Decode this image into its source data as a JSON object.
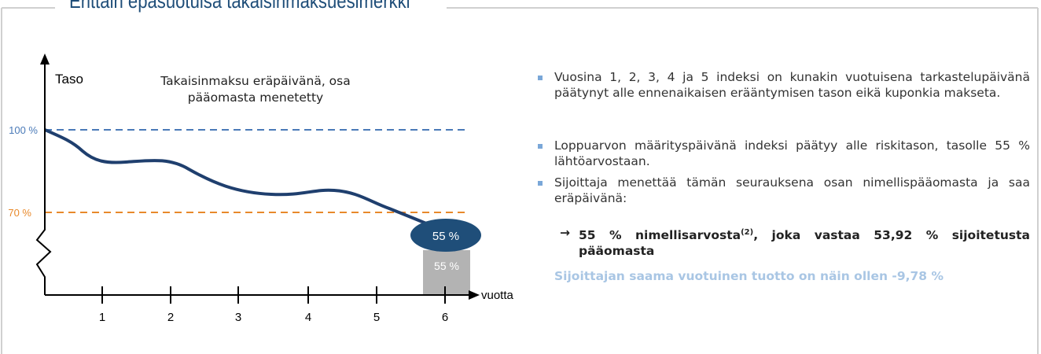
{
  "header": {
    "title": "Erittäin epäsuotuisa takaisinmaksuesimerkki"
  },
  "diagram": {
    "y_axis_label": "Taso",
    "caption": "Takaisinmaksu eräpäivänä, osa pääomasta menetetty",
    "levels": [
      "100 %",
      "70 %"
    ],
    "x_axis_label": "vuotta",
    "x_ticks": [
      "1",
      "2",
      "3",
      "4",
      "5",
      "6"
    ],
    "bubble_label": "55 %",
    "bar_label": "55 %"
  },
  "bullets": [
    "Vuosina 1, 2, 3, 4 ja 5 indeksi on kunakin vuotuisena tarkastelupäivänä päätynyt alle ennenaikaisen erääntymisen tason eikä kuponkia makseta.",
    "Loppuarvon määrityspäivänä indeksi päätyy alle riskitason, tasolle 55 % lähtöarvostaan.",
    "Sijoittaja menettää tämän seurauksena osan nimellispääomasta ja saa eräpäivänä:"
  ],
  "result": {
    "arrow": "→",
    "before": "55 % nimellisarvosta",
    "sup": "(2)",
    "after": ", joka vastaa 53,92 % sijoitetusta pääomasta"
  },
  "footer": "Sijoittajan saama vuotuinen tuotto on näin ollen -9,78 %"
}
